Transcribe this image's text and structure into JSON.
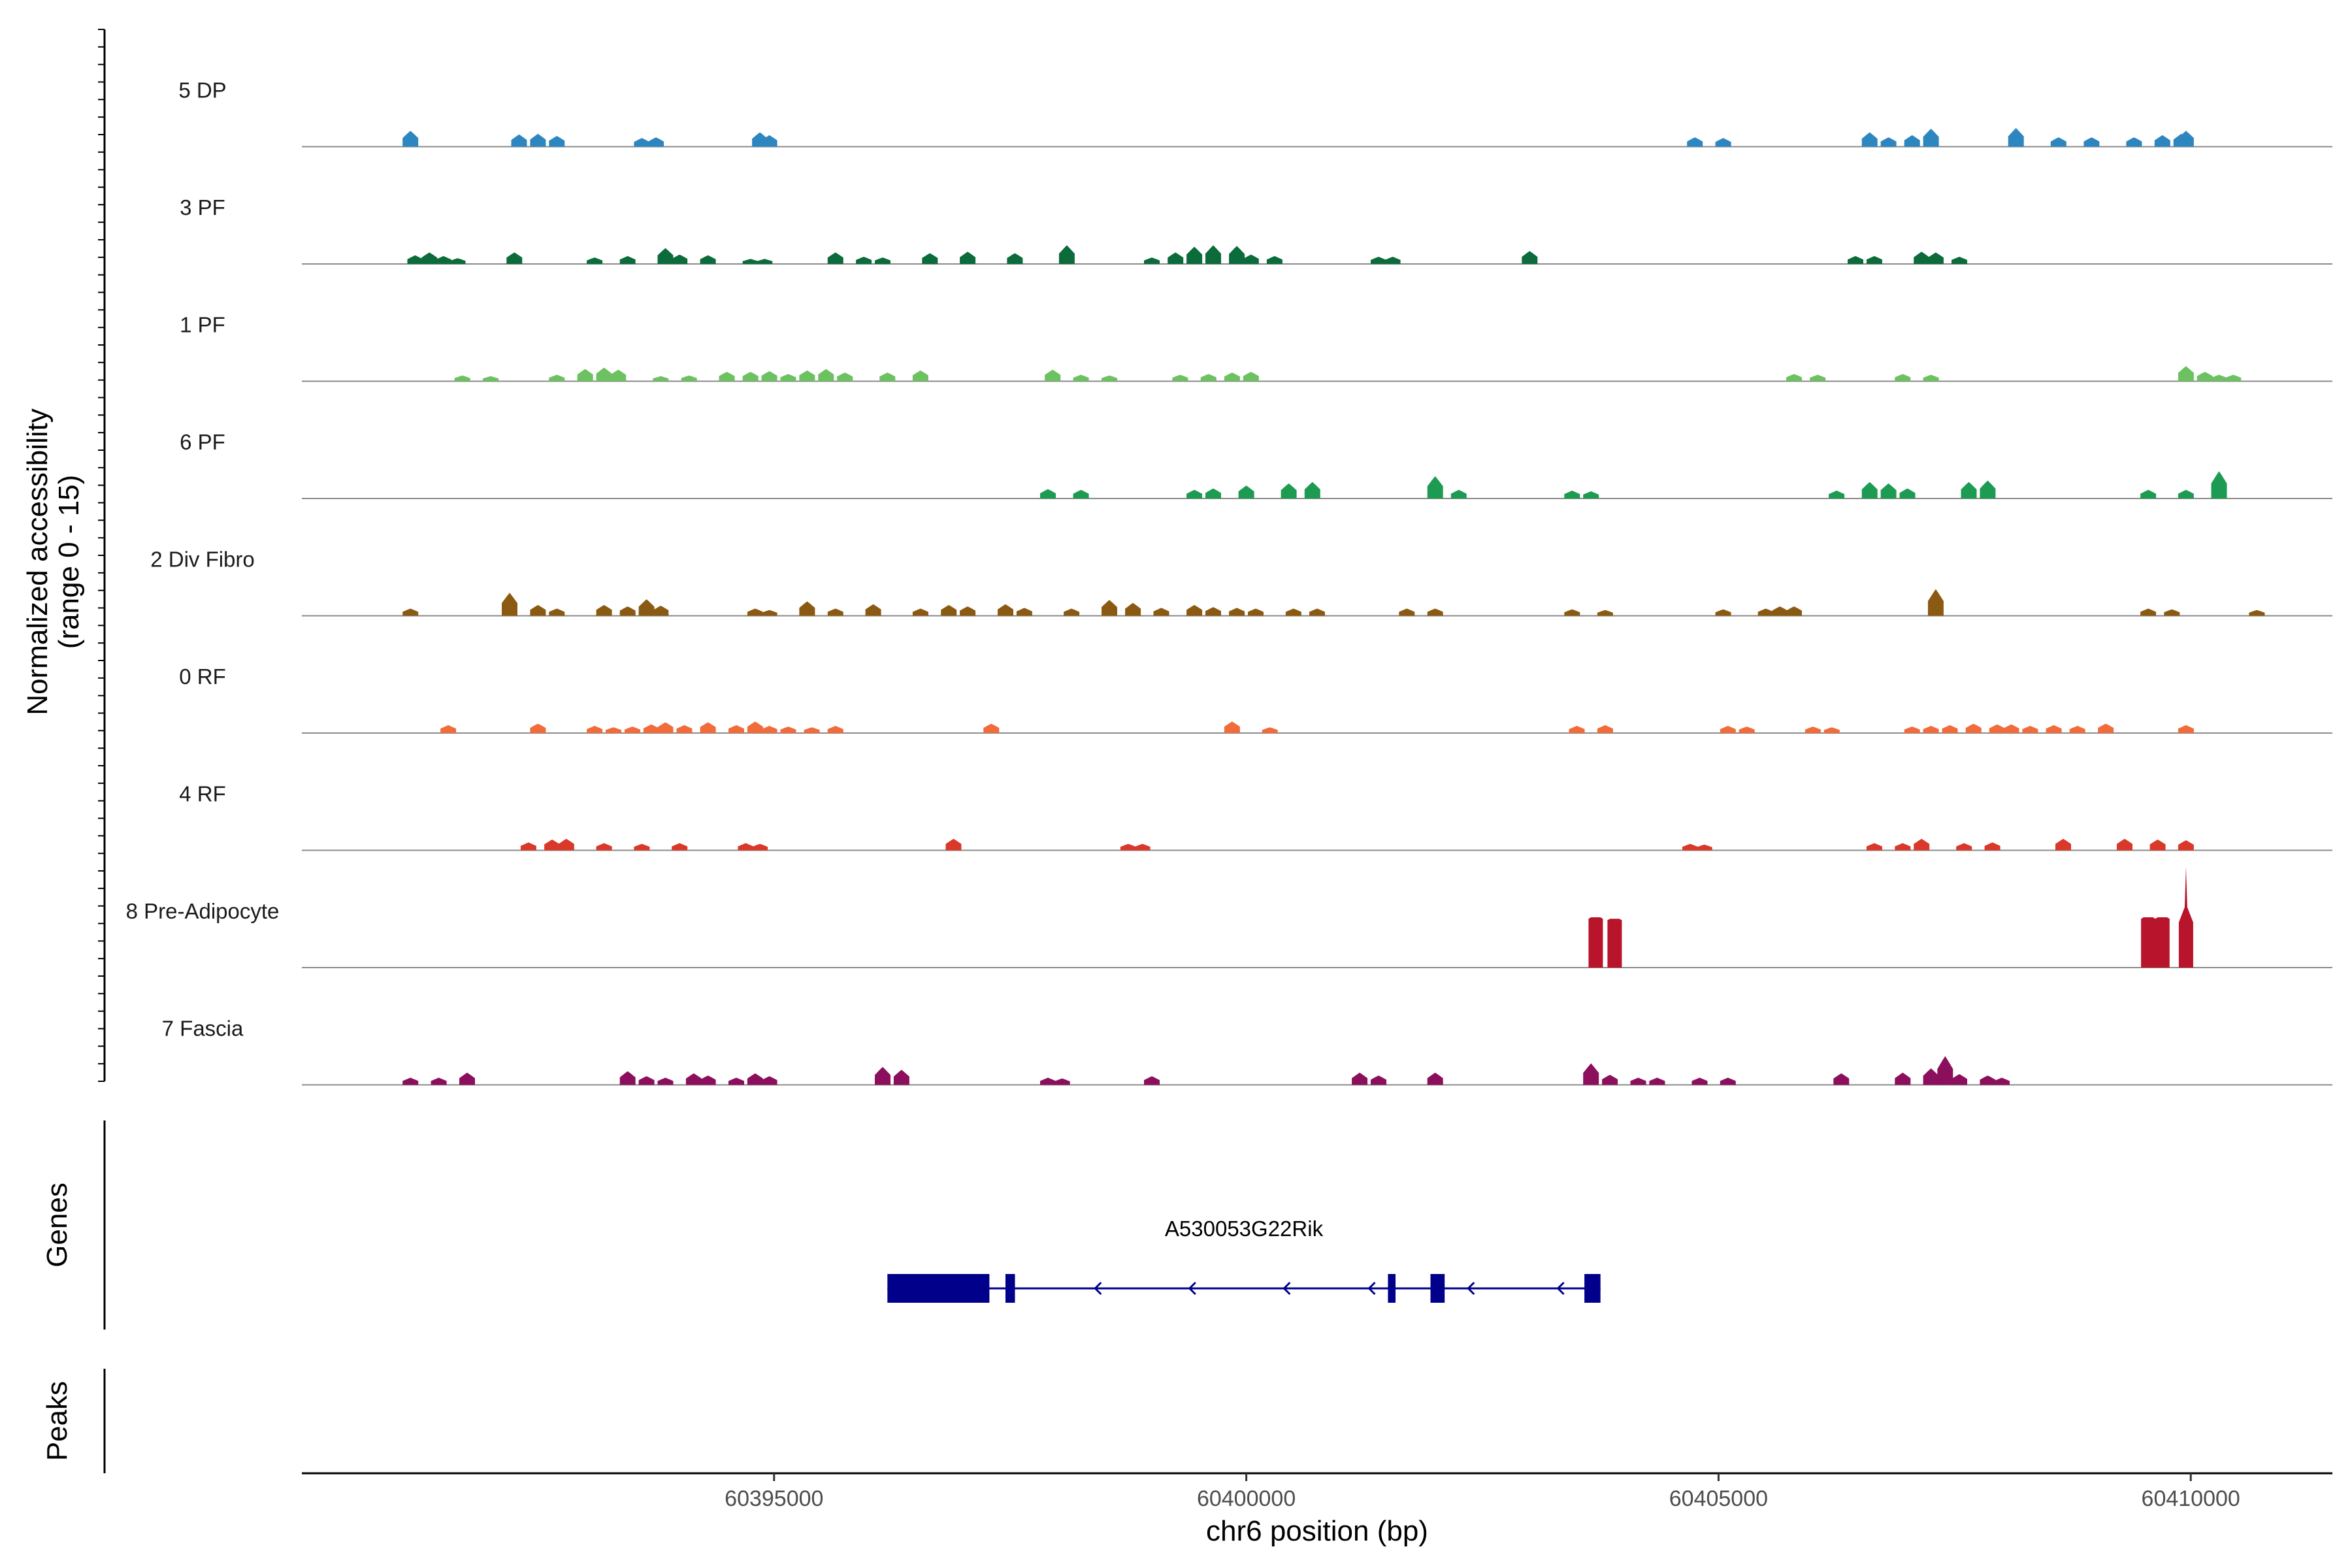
{
  "chart_data": {
    "type": "area",
    "title": "",
    "ylabel": "Normalized accessibility",
    "ylabel_range": "(range 0 - 15)",
    "xlabel": "chr6 position (bp)",
    "xlim": [
      60390000,
      60411500
    ],
    "ylim": [
      0,
      15
    ],
    "xticks": [
      60395000,
      60400000,
      60405000,
      60410000
    ],
    "xtick_labels": [
      "60395000",
      "60400000",
      "60405000",
      "60410000"
    ],
    "tracks": [
      {
        "name": "5 DP",
        "color": "#2E86C1",
        "peaks": [
          [
            60391150,
            2.2
          ],
          [
            60392300,
            1.7
          ],
          [
            60392500,
            1.8
          ],
          [
            60392700,
            1.5
          ],
          [
            60393600,
            1.2
          ],
          [
            60393750,
            1.3
          ],
          [
            60394850,
            2.0
          ],
          [
            60394950,
            1.6
          ],
          [
            60404750,
            1.3
          ],
          [
            60405050,
            1.2
          ],
          [
            60406600,
            2.0
          ],
          [
            60406800,
            1.3
          ],
          [
            60407050,
            1.6
          ],
          [
            60407250,
            2.5
          ],
          [
            60408150,
            2.6
          ],
          [
            60408600,
            1.3
          ],
          [
            60408950,
            1.3
          ],
          [
            60409400,
            1.3
          ],
          [
            60409700,
            1.6
          ],
          [
            60409900,
            1.8
          ],
          [
            60409950,
            2.2
          ]
        ]
      },
      {
        "name": "3 PF",
        "color": "#0B6B3A",
        "peaks": [
          [
            60391200,
            1.2
          ],
          [
            60391350,
            1.6
          ],
          [
            60391500,
            1.1
          ],
          [
            60391650,
            0.8
          ],
          [
            60392250,
            1.6
          ],
          [
            60393100,
            0.9
          ],
          [
            60393450,
            1.1
          ],
          [
            60393850,
            2.2
          ],
          [
            60394000,
            1.3
          ],
          [
            60394300,
            1.2
          ],
          [
            60394750,
            0.7
          ],
          [
            60394900,
            0.7
          ],
          [
            60395650,
            1.6
          ],
          [
            60395950,
            1.0
          ],
          [
            60396150,
            0.9
          ],
          [
            60396650,
            1.5
          ],
          [
            60397050,
            1.7
          ],
          [
            60397550,
            1.5
          ],
          [
            60398100,
            2.6
          ],
          [
            60399000,
            0.9
          ],
          [
            60399250,
            1.6
          ],
          [
            60399450,
            2.4
          ],
          [
            60399650,
            2.6
          ],
          [
            60399900,
            2.5
          ],
          [
            60400050,
            1.3
          ],
          [
            60400300,
            1.1
          ],
          [
            60401400,
            1.0
          ],
          [
            60401550,
            1.0
          ],
          [
            60403000,
            1.8
          ],
          [
            60406450,
            1.1
          ],
          [
            60406650,
            1.1
          ],
          [
            60407150,
            1.7
          ],
          [
            60407300,
            1.6
          ],
          [
            60407550,
            1.0
          ]
        ]
      },
      {
        "name": "1 PF",
        "color": "#6CC160",
        "peaks": [
          [
            60391700,
            0.8
          ],
          [
            60392000,
            0.7
          ],
          [
            60392700,
            0.9
          ],
          [
            60393000,
            1.7
          ],
          [
            60393200,
            1.9
          ],
          [
            60393350,
            1.6
          ],
          [
            60393800,
            0.7
          ],
          [
            60394100,
            0.8
          ],
          [
            60394500,
            1.3
          ],
          [
            60394750,
            1.3
          ],
          [
            60394950,
            1.4
          ],
          [
            60395150,
            1.0
          ],
          [
            60395350,
            1.5
          ],
          [
            60395550,
            1.7
          ],
          [
            60395750,
            1.2
          ],
          [
            60396200,
            1.2
          ],
          [
            60396550,
            1.5
          ],
          [
            60397950,
            1.6
          ],
          [
            60398250,
            0.9
          ],
          [
            60398550,
            0.8
          ],
          [
            60399300,
            0.9
          ],
          [
            60399600,
            1.0
          ],
          [
            60399850,
            1.2
          ],
          [
            60400050,
            1.3
          ],
          [
            60405800,
            1.0
          ],
          [
            60406050,
            0.9
          ],
          [
            60406950,
            1.0
          ],
          [
            60407250,
            0.9
          ],
          [
            60409950,
            2.1
          ],
          [
            60410150,
            1.3
          ],
          [
            60410300,
            0.9
          ],
          [
            60410450,
            0.9
          ]
        ]
      },
      {
        "name": "6 PF",
        "color": "#1E9B52",
        "peaks": [
          [
            60397900,
            1.3
          ],
          [
            60398250,
            1.2
          ],
          [
            60399450,
            1.2
          ],
          [
            60399650,
            1.4
          ],
          [
            60400000,
            1.8
          ],
          [
            60400450,
            2.1
          ],
          [
            60400700,
            2.3
          ],
          [
            60402000,
            3.1
          ],
          [
            60402250,
            1.2
          ],
          [
            60403450,
            1.1
          ],
          [
            60403650,
            1.0
          ],
          [
            60406250,
            1.1
          ],
          [
            60406600,
            2.3
          ],
          [
            60406800,
            2.1
          ],
          [
            60407000,
            1.4
          ],
          [
            60407650,
            2.3
          ],
          [
            60407850,
            2.5
          ],
          [
            60409550,
            1.2
          ],
          [
            60409950,
            1.2
          ],
          [
            60410300,
            3.8
          ]
        ]
      },
      {
        "name": "2 Div Fibro",
        "color": "#8B5A12",
        "peaks": [
          [
            60391150,
            1.0
          ],
          [
            60392200,
            3.2
          ],
          [
            60392500,
            1.5
          ],
          [
            60392700,
            1.0
          ],
          [
            60393200,
            1.5
          ],
          [
            60393450,
            1.3
          ],
          [
            60393650,
            2.3
          ],
          [
            60393800,
            1.4
          ],
          [
            60394800,
            1.0
          ],
          [
            60394950,
            0.8
          ],
          [
            60395350,
            2.0
          ],
          [
            60395650,
            1.0
          ],
          [
            60396050,
            1.6
          ],
          [
            60396550,
            1.0
          ],
          [
            60396850,
            1.5
          ],
          [
            60397050,
            1.3
          ],
          [
            60397450,
            1.6
          ],
          [
            60397650,
            1.1
          ],
          [
            60398150,
            1.0
          ],
          [
            60398550,
            2.2
          ],
          [
            60398800,
            1.8
          ],
          [
            60399100,
            1.1
          ],
          [
            60399450,
            1.5
          ],
          [
            60399650,
            1.2
          ],
          [
            60399900,
            1.1
          ],
          [
            60400100,
            1.0
          ],
          [
            60400500,
            1.0
          ],
          [
            60400750,
            1.0
          ],
          [
            60401700,
            1.0
          ],
          [
            60402000,
            1.0
          ],
          [
            60403450,
            0.9
          ],
          [
            60403800,
            0.8
          ],
          [
            60405050,
            0.9
          ],
          [
            60405500,
            1.0
          ],
          [
            60405650,
            1.3
          ],
          [
            60405800,
            1.3
          ],
          [
            60407300,
            3.7
          ],
          [
            60409550,
            1.0
          ],
          [
            60409800,
            0.9
          ],
          [
            60410700,
            0.8
          ]
        ]
      },
      {
        "name": "0 RF",
        "color": "#F26B3A",
        "peaks": [
          [
            60391550,
            1.1
          ],
          [
            60392500,
            1.3
          ],
          [
            60393100,
            1.0
          ],
          [
            60393300,
            0.8
          ],
          [
            60393500,
            0.9
          ],
          [
            60393700,
            1.2
          ],
          [
            60393850,
            1.5
          ],
          [
            60394050,
            1.1
          ],
          [
            60394300,
            1.5
          ],
          [
            60394600,
            1.1
          ],
          [
            60394800,
            1.6
          ],
          [
            60394950,
            1.0
          ],
          [
            60395150,
            0.9
          ],
          [
            60395400,
            0.8
          ],
          [
            60395650,
            1.0
          ],
          [
            60397300,
            1.3
          ],
          [
            60399850,
            1.6
          ],
          [
            60400250,
            0.8
          ],
          [
            60403500,
            1.0
          ],
          [
            60403800,
            1.1
          ],
          [
            60405100,
            1.0
          ],
          [
            60405300,
            0.9
          ],
          [
            60406000,
            0.9
          ],
          [
            60406200,
            0.8
          ],
          [
            60407050,
            0.9
          ],
          [
            60407250,
            1.0
          ],
          [
            60407450,
            1.1
          ],
          [
            60407700,
            1.3
          ],
          [
            60407950,
            1.2
          ],
          [
            60408100,
            1.2
          ],
          [
            60408300,
            1.0
          ],
          [
            60408550,
            1.1
          ],
          [
            60408800,
            1.0
          ],
          [
            60409100,
            1.3
          ],
          [
            60409950,
            1.1
          ]
        ]
      },
      {
        "name": "4 RF",
        "color": "#D9382A",
        "peaks": [
          [
            60392400,
            1.1
          ],
          [
            60392650,
            1.5
          ],
          [
            60392800,
            1.6
          ],
          [
            60393200,
            1.0
          ],
          [
            60393600,
            0.9
          ],
          [
            60394000,
            1.0
          ],
          [
            60394700,
            1.0
          ],
          [
            60394850,
            0.9
          ],
          [
            60396900,
            1.6
          ],
          [
            60398750,
            0.9
          ],
          [
            60398900,
            0.9
          ],
          [
            60404700,
            0.9
          ],
          [
            60404850,
            0.8
          ],
          [
            60406650,
            1.0
          ],
          [
            60406950,
            1.0
          ],
          [
            60407150,
            1.6
          ],
          [
            60407600,
            1.0
          ],
          [
            60407900,
            1.1
          ],
          [
            60408650,
            1.6
          ],
          [
            60409300,
            1.6
          ],
          [
            60409650,
            1.5
          ],
          [
            60409950,
            1.4
          ]
        ]
      },
      {
        "name": "8 Pre-Adipocyte",
        "color": "#B8142B",
        "peaks": [
          [
            60403700,
            7.0
          ],
          [
            60403900,
            6.8
          ],
          [
            60409550,
            7.0
          ],
          [
            60409700,
            7.0
          ],
          [
            60409950,
            14.0
          ]
        ]
      },
      {
        "name": "7 Fascia",
        "color": "#8B0F5C",
        "peaks": [
          [
            60391150,
            1.0
          ],
          [
            60391450,
            1.0
          ],
          [
            60391750,
            1.7
          ],
          [
            60393450,
            1.9
          ],
          [
            60393650,
            1.2
          ],
          [
            60393850,
            1.0
          ],
          [
            60394150,
            1.6
          ],
          [
            60394300,
            1.3
          ],
          [
            60394600,
            1.0
          ],
          [
            60394800,
            1.6
          ],
          [
            60394950,
            1.2
          ],
          [
            60396150,
            2.5
          ],
          [
            60396350,
            2.1
          ],
          [
            60397900,
            1.0
          ],
          [
            60398050,
            0.9
          ],
          [
            60399000,
            1.2
          ],
          [
            60401200,
            1.7
          ],
          [
            60401400,
            1.3
          ],
          [
            60402000,
            1.7
          ],
          [
            60403650,
            3.0
          ],
          [
            60403850,
            1.4
          ],
          [
            60404150,
            1.0
          ],
          [
            60404350,
            1.0
          ],
          [
            60404800,
            1.0
          ],
          [
            60405100,
            1.0
          ],
          [
            60406300,
            1.6
          ],
          [
            60406950,
            1.7
          ],
          [
            60407250,
            2.3
          ],
          [
            60407400,
            4.0
          ],
          [
            60407550,
            1.5
          ],
          [
            60407850,
            1.3
          ],
          [
            60408000,
            1.0
          ]
        ]
      }
    ],
    "genes": [
      {
        "name": "A530053G22Rik",
        "strand": "-",
        "start": 60396200,
        "end": 60403750,
        "color": "#00008B",
        "exons": [
          [
            60396200,
            60397280
          ],
          [
            60397450,
            60397550
          ],
          [
            60401500,
            60401580
          ],
          [
            60401950,
            60402100
          ],
          [
            60403580,
            60403750
          ]
        ],
        "direction_marks": [
          60398400,
          60399400,
          60400400,
          60401300,
          60402350,
          60403300
        ]
      }
    ],
    "panel_labels": {
      "genes": "Genes",
      "peaks": "Peaks"
    }
  }
}
